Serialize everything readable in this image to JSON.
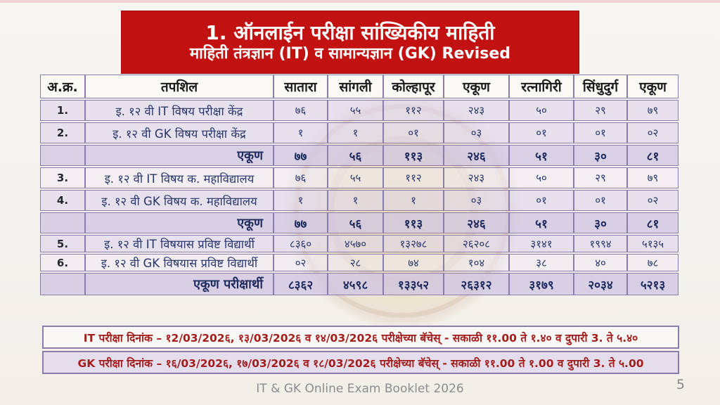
{
  "banner": {
    "title": "1. ऑनलाईन परीक्षा सांख्यिकीय माहिती",
    "subtitle": "माहिती तंत्रज्ञान (IT) व सामान्यज्ञान (GK) Revised"
  },
  "table": {
    "headers": [
      "अ.क्र.",
      "तपशिल",
      "सातारा",
      "सांगली",
      "कोल्हापूर",
      "एकूण",
      "रत्नागिरी",
      "सिंधुदुर्ग",
      "एकूण"
    ],
    "rows": [
      {
        "sr": "1.",
        "label": "इ. १२ वी  IT विषय परीक्षा केंद्र",
        "values": [
          "७६",
          "५५",
          "११२",
          "२४३",
          "५०",
          "२९",
          "७९"
        ],
        "type": "data"
      },
      {
        "sr": "2.",
        "label": "इ. १२ वी  GK विषय परीक्षा केंद्र",
        "values": [
          "१",
          "१",
          "०१",
          "०३",
          "०१",
          "०१",
          "०२"
        ],
        "type": "data"
      },
      {
        "sr": "",
        "label": "एकूण",
        "values": [
          "७७",
          "५६",
          "११३",
          "२४६",
          "५१",
          "३०",
          "८१"
        ],
        "type": "total"
      },
      {
        "sr": "3.",
        "label": "इ. १२ वी  IT विषय क. महाविद्यालय",
        "values": [
          "७६",
          "५५",
          "११२",
          "२४३",
          "५०",
          "२९",
          "७९"
        ],
        "type": "data"
      },
      {
        "sr": "4.",
        "label": "इ. १२ वी  GK विषय क. महाविद्यालय",
        "values": [
          "१",
          "१",
          "१",
          "०३",
          "०१",
          "०१",
          "०२"
        ],
        "type": "data"
      },
      {
        "sr": "",
        "label": "एकूण",
        "values": [
          "७७",
          "५६",
          "११३",
          "२४६",
          "५१",
          "३०",
          "८१"
        ],
        "type": "total"
      },
      {
        "sr": "5.",
        "label": "इ. १२ वी IT विषयास प्रविष्ट विद्यार्थी",
        "values": [
          "८३६०",
          "४५७०",
          "१३२७८",
          "२६२०८",
          "३१४१",
          "१९९४",
          "५१३५"
        ],
        "type": "data"
      },
      {
        "sr": "6.",
        "label": "इ. १२ वी GK  विषयास प्रविष्ट विद्यार्थी",
        "values": [
          "०२",
          "२८",
          "७४",
          "१०४",
          "३८",
          "४०",
          "७८"
        ],
        "type": "data"
      },
      {
        "sr": "",
        "label": "एकूण परीक्षार्थी",
        "values": [
          "८३६२",
          "४५९८",
          "१३३५२",
          "२६३१२",
          "३१७९",
          "२०३४",
          "५२१३"
        ],
        "type": "total"
      }
    ]
  },
  "notices": [
    "IT परीक्षा दिनांक – १2/03/202६, १३/03/202६ व १४/03/202६ परीक्षेच्या बॅचेस् - सकाळी ११.00 ते १.४० व दुपारी 3. ते ५.४०",
    "GK परीक्षा दिनांक – १६/03/202६, १७/03/202६ व १८/03/202६ परीक्षेच्या बॅचेस् - सकाळी ११.00 ते १.00 व दुपारी 3. ते ५.00"
  ],
  "footer": {
    "text": "IT & GK Online Exam Booklet 2026",
    "page": "5"
  },
  "colors": {
    "banner-red": "#c21111",
    "border-purple": "#8b7dab",
    "text-navy": "#27356b",
    "notice-red": "#a31d1d"
  }
}
